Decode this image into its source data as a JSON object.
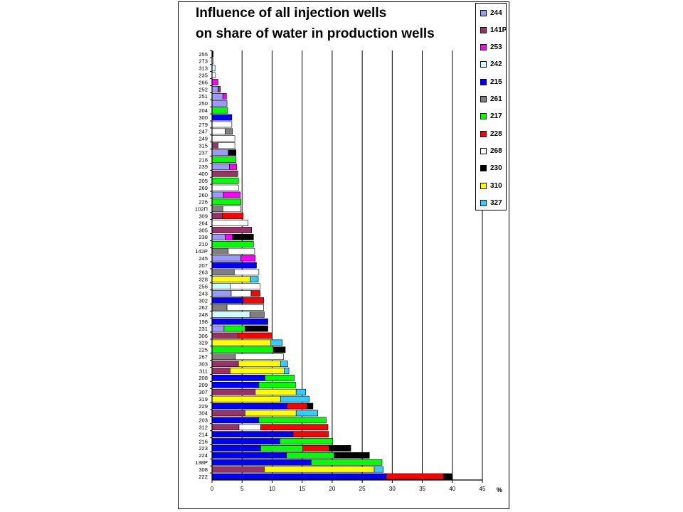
{
  "chart_data": {
    "type": "bar",
    "orientation": "horizontal",
    "stacked": true,
    "title_lines": [
      "Influence of all injection wells",
      "on share of water in production wells"
    ],
    "xunit": "%",
    "xlim": [
      0,
      45
    ],
    "xticks": [
      0,
      5,
      10,
      15,
      20,
      25,
      30,
      35,
      40,
      45
    ],
    "grid": "vertical",
    "legend_placement": "top-right",
    "series": [
      {
        "name": "244",
        "color": "#9999ff"
      },
      {
        "name": "141P",
        "color": "#993366"
      },
      {
        "name": "253",
        "color": "#ff00ff"
      },
      {
        "name": "242",
        "color": "#ccffff"
      },
      {
        "name": "215",
        "color": "#0000ff"
      },
      {
        "name": "261",
        "color": "#808080"
      },
      {
        "name": "217",
        "color": "#00ff00"
      },
      {
        "name": "228",
        "color": "#ff0000"
      },
      {
        "name": "268",
        "color": "#ffffff"
      },
      {
        "name": "230",
        "color": "#000000"
      },
      {
        "name": "310",
        "color": "#ffff00"
      },
      {
        "name": "327",
        "color": "#33ccff"
      }
    ],
    "wells": [
      {
        "name": "255",
        "segments": [
          [
            "230",
            0.2
          ]
        ]
      },
      {
        "name": "273",
        "segments": [
          [
            "268",
            0.2
          ]
        ]
      },
      {
        "name": "313",
        "segments": [
          [
            "242",
            0.5
          ]
        ]
      },
      {
        "name": "235",
        "segments": [
          [
            "268",
            0.5
          ]
        ]
      },
      {
        "name": "266",
        "segments": [
          [
            "253",
            1.0
          ]
        ]
      },
      {
        "name": "252",
        "segments": [
          [
            "244",
            1.0
          ],
          [
            "141P",
            0.4
          ]
        ]
      },
      {
        "name": "251",
        "segments": [
          [
            "244",
            1.8
          ],
          [
            "253",
            0.6
          ]
        ]
      },
      {
        "name": "250",
        "segments": [
          [
            "244",
            2.5
          ]
        ]
      },
      {
        "name": "204",
        "segments": [
          [
            "217",
            2.6
          ]
        ]
      },
      {
        "name": "300",
        "segments": [
          [
            "215",
            3.3
          ]
        ]
      },
      {
        "name": "279",
        "segments": [
          [
            "268",
            3.3
          ]
        ]
      },
      {
        "name": "247",
        "segments": [
          [
            "268",
            2.2
          ],
          [
            "261",
            1.2
          ]
        ]
      },
      {
        "name": "249",
        "segments": [
          [
            "268",
            3.8
          ]
        ]
      },
      {
        "name": "315",
        "segments": [
          [
            "141P",
            1.0
          ],
          [
            "268",
            2.8
          ]
        ]
      },
      {
        "name": "237",
        "segments": [
          [
            "244",
            2.7
          ],
          [
            "230",
            1.3
          ]
        ]
      },
      {
        "name": "218",
        "segments": [
          [
            "217",
            4.0
          ]
        ]
      },
      {
        "name": "239",
        "segments": [
          [
            "244",
            2.9
          ],
          [
            "253",
            1.2
          ]
        ]
      },
      {
        "name": "400",
        "segments": [
          [
            "141P",
            4.3
          ]
        ]
      },
      {
        "name": "205",
        "segments": [
          [
            "217",
            4.4
          ]
        ]
      },
      {
        "name": "269",
        "segments": [
          [
            "268",
            4.4
          ]
        ]
      },
      {
        "name": "260",
        "segments": [
          [
            "244",
            1.9
          ],
          [
            "253",
            2.8
          ]
        ]
      },
      {
        "name": "226",
        "segments": [
          [
            "217",
            4.8
          ]
        ]
      },
      {
        "name": "102П",
        "segments": [
          [
            "261",
            1.8
          ],
          [
            "268",
            3.0
          ]
        ]
      },
      {
        "name": "309",
        "segments": [
          [
            "141P",
            1.7
          ],
          [
            "228",
            3.5
          ]
        ]
      },
      {
        "name": "264",
        "segments": [
          [
            "268",
            6.0
          ]
        ]
      },
      {
        "name": "305",
        "segments": [
          [
            "141P",
            6.6
          ]
        ]
      },
      {
        "name": "238",
        "segments": [
          [
            "244",
            2.2
          ],
          [
            "253",
            1.2
          ],
          [
            "230",
            3.5
          ]
        ]
      },
      {
        "name": "210",
        "segments": [
          [
            "217",
            6.9
          ]
        ]
      },
      {
        "name": "142P",
        "segments": [
          [
            "261",
            2.7
          ],
          [
            "268",
            4.4
          ]
        ]
      },
      {
        "name": "245",
        "segments": [
          [
            "244",
            4.8
          ],
          [
            "253",
            2.4
          ]
        ]
      },
      {
        "name": "207",
        "segments": [
          [
            "215",
            7.4
          ]
        ]
      },
      {
        "name": "263",
        "segments": [
          [
            "261",
            3.7
          ],
          [
            "268",
            4.1
          ]
        ]
      },
      {
        "name": "328",
        "segments": [
          [
            "310",
            6.4
          ],
          [
            "327",
            1.3
          ]
        ]
      },
      {
        "name": "256",
        "segments": [
          [
            "242",
            3.0
          ],
          [
            "268",
            5.0
          ]
        ]
      },
      {
        "name": "243",
        "segments": [
          [
            "244",
            3.2
          ],
          [
            "268",
            3.3
          ],
          [
            "228",
            1.5
          ]
        ]
      },
      {
        "name": "302",
        "segments": [
          [
            "215",
            5.2
          ],
          [
            "228",
            3.4
          ]
        ]
      },
      {
        "name": "262",
        "segments": [
          [
            "261",
            2.5
          ],
          [
            "268",
            6.1
          ]
        ]
      },
      {
        "name": "248",
        "segments": [
          [
            "242",
            6.3
          ],
          [
            "261",
            2.4
          ]
        ]
      },
      {
        "name": "198",
        "segments": [
          [
            "215",
            9.3
          ]
        ]
      },
      {
        "name": "231",
        "segments": [
          [
            "244",
            2.0
          ],
          [
            "217",
            3.5
          ],
          [
            "230",
            3.8
          ]
        ]
      },
      {
        "name": "306",
        "segments": [
          [
            "141P",
            4.3
          ],
          [
            "228",
            5.7
          ]
        ]
      },
      {
        "name": "329",
        "segments": [
          [
            "310",
            9.8
          ],
          [
            "327",
            1.9
          ]
        ]
      },
      {
        "name": "225",
        "segments": [
          [
            "217",
            10.2
          ],
          [
            "230",
            2.0
          ]
        ]
      },
      {
        "name": "267",
        "segments": [
          [
            "261",
            3.9
          ],
          [
            "268",
            8.0
          ]
        ]
      },
      {
        "name": "303",
        "segments": [
          [
            "141P",
            4.4
          ],
          [
            "310",
            7.0
          ],
          [
            "327",
            1.2
          ]
        ]
      },
      {
        "name": "311",
        "segments": [
          [
            "141P",
            3.0
          ],
          [
            "310",
            9.0
          ],
          [
            "327",
            0.8
          ]
        ]
      },
      {
        "name": "208",
        "segments": [
          [
            "215",
            8.8
          ],
          [
            "217",
            4.9
          ]
        ]
      },
      {
        "name": "209",
        "segments": [
          [
            "215",
            7.8
          ],
          [
            "217",
            6.1
          ]
        ]
      },
      {
        "name": "307",
        "segments": [
          [
            "141P",
            7.2
          ],
          [
            "310",
            6.8
          ],
          [
            "327",
            1.6
          ]
        ]
      },
      {
        "name": "319",
        "segments": [
          [
            "310",
            11.4
          ],
          [
            "327",
            4.8
          ]
        ]
      },
      {
        "name": "229",
        "segments": [
          [
            "215",
            12.5
          ],
          [
            "228",
            3.3
          ],
          [
            "230",
            1.0
          ]
        ]
      },
      {
        "name": "304",
        "segments": [
          [
            "141P",
            5.5
          ],
          [
            "310",
            8.5
          ],
          [
            "327",
            3.6
          ]
        ]
      },
      {
        "name": "203",
        "segments": [
          [
            "215",
            7.8
          ],
          [
            "217",
            11.2
          ]
        ]
      },
      {
        "name": "312",
        "segments": [
          [
            "141P",
            4.5
          ],
          [
            "268",
            3.6
          ],
          [
            "228",
            11.2
          ]
        ]
      },
      {
        "name": "214",
        "segments": [
          [
            "215",
            13.5
          ],
          [
            "228",
            5.9
          ]
        ]
      },
      {
        "name": "216",
        "segments": [
          [
            "215",
            11.3
          ],
          [
            "217",
            8.8
          ]
        ]
      },
      {
        "name": "223",
        "segments": [
          [
            "215",
            8.1
          ],
          [
            "217",
            7.0
          ],
          [
            "228",
            4.4
          ],
          [
            "230",
            3.6
          ]
        ]
      },
      {
        "name": "224",
        "segments": [
          [
            "215",
            12.4
          ],
          [
            "217",
            7.9
          ],
          [
            "230",
            5.9
          ]
        ]
      },
      {
        "name": "138P",
        "segments": [
          [
            "215",
            16.5
          ],
          [
            "217",
            11.8
          ]
        ]
      },
      {
        "name": "308",
        "segments": [
          [
            "141P",
            8.7
          ],
          [
            "310",
            18.3
          ],
          [
            "327",
            1.5
          ]
        ]
      },
      {
        "name": "222",
        "segments": [
          [
            "215",
            29.0
          ],
          [
            "228",
            9.5
          ],
          [
            "230",
            1.5
          ]
        ]
      }
    ]
  }
}
